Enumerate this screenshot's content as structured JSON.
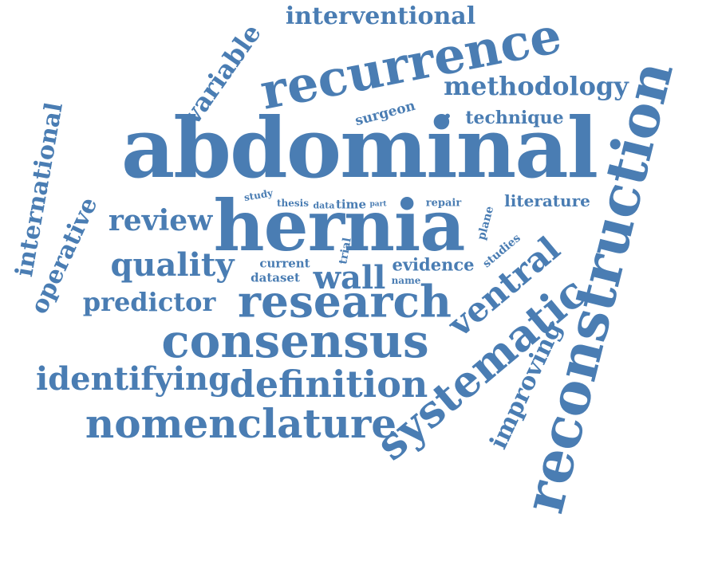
{
  "style": {
    "word_color": "#4a7db3",
    "background": "#ffffff"
  },
  "words": {
    "abdominal": "abdominal",
    "hernia": "hernia",
    "reconstruction": "reconstruction",
    "recurrence": "recurrence",
    "consensus": "consensus",
    "research": "research",
    "systematic": "systematic",
    "ventral": "ventral",
    "nomenclature": "nomenclature",
    "definition": "definition",
    "identifying": "identifying",
    "quality": "quality",
    "review": "review",
    "wall": "wall",
    "predictor": "predictor",
    "improving": "improving",
    "methodology": "methodology",
    "interventional": "interventional",
    "variable": "variable",
    "international": "international",
    "operative": "operative",
    "technique": "technique",
    "literature": "literature",
    "evidence": "evidence",
    "surgeon": "surgeon",
    "studies": "studies",
    "plane": "plane",
    "trial": "trial",
    "current": "current",
    "dataset": "dataset",
    "name": "name",
    "repair": "repair",
    "study": "study",
    "thesis": "thesis",
    "data": "data",
    "time": "time",
    "part": "part",
    "dot": "."
  }
}
